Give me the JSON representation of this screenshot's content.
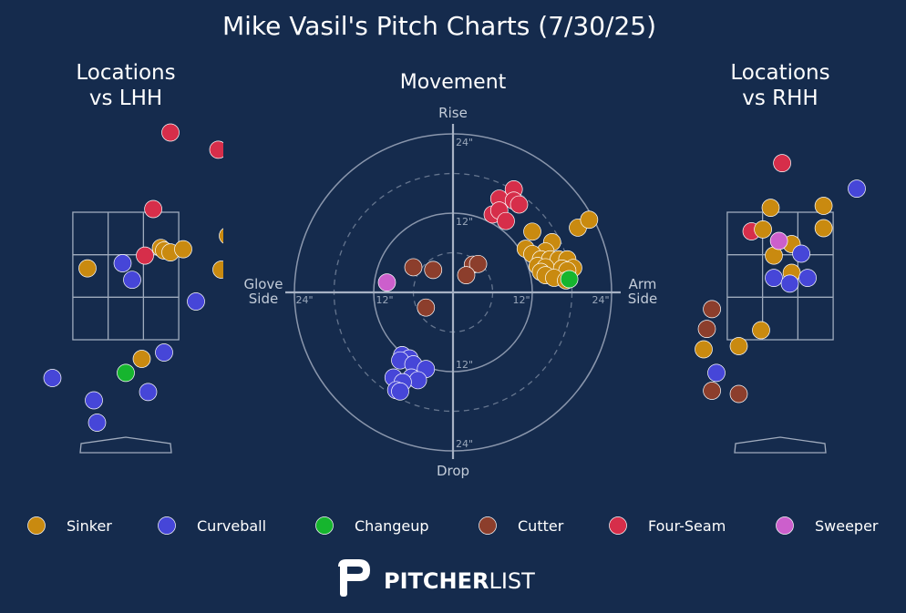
{
  "title": "Mike Vasil's Pitch Charts (7/30/25)",
  "colors": {
    "background": "#152b4d",
    "Sinker": "#c98a10",
    "Curveball": "#4646d8",
    "Changeup": "#16b52e",
    "Cutter": "#8c3e2c",
    "Four-Seam": "#d62e4a",
    "Sweeper": "#cc5fcc"
  },
  "legend": [
    "Sinker",
    "Curveball",
    "Changeup",
    "Cutter",
    "Four-Seam",
    "Sweeper"
  ],
  "logo": {
    "bold": "PITCHER",
    "light": "LIST"
  },
  "chart_data": [
    {
      "type": "scatter",
      "title": "Locations\nvs LHH",
      "units": "ft",
      "strike_zone": {
        "x": [
          -0.83,
          0.83
        ],
        "z": [
          1.5,
          3.5
        ]
      },
      "points": [
        {
          "pitch": "Four-Seam",
          "x": 0.7,
          "z": 4.75
        },
        {
          "pitch": "Four-Seam",
          "x": 1.45,
          "z": 4.48
        },
        {
          "pitch": "Four-Seam",
          "x": 0.43,
          "z": 3.55
        },
        {
          "pitch": "Four-Seam",
          "x": 0.3,
          "z": 2.82
        },
        {
          "pitch": "Sinker",
          "x": 0.55,
          "z": 2.94
        },
        {
          "pitch": "Sinker",
          "x": 0.6,
          "z": 2.9
        },
        {
          "pitch": "Sinker",
          "x": 0.7,
          "z": 2.87
        },
        {
          "pitch": "Sinker",
          "x": 0.9,
          "z": 2.92
        },
        {
          "pitch": "Sinker",
          "x": 1.6,
          "z": 3.13
        },
        {
          "pitch": "Sinker",
          "x": 1.5,
          "z": 2.6
        },
        {
          "pitch": "Sinker",
          "x": -0.6,
          "z": 2.62
        },
        {
          "pitch": "Sinker",
          "x": 0.25,
          "z": 1.2
        },
        {
          "pitch": "Curveball",
          "x": -0.05,
          "z": 2.7
        },
        {
          "pitch": "Curveball",
          "x": 0.1,
          "z": 2.44
        },
        {
          "pitch": "Curveball",
          "x": 1.1,
          "z": 2.1
        },
        {
          "pitch": "Curveball",
          "x": 0.6,
          "z": 1.3
        },
        {
          "pitch": "Curveball",
          "x": -1.15,
          "z": 0.9
        },
        {
          "pitch": "Curveball",
          "x": 0.35,
          "z": 0.68
        },
        {
          "pitch": "Curveball",
          "x": -0.5,
          "z": 0.55
        },
        {
          "pitch": "Curveball",
          "x": -0.45,
          "z": 0.2
        },
        {
          "pitch": "Changeup",
          "x": 0.0,
          "z": 0.98
        }
      ]
    },
    {
      "type": "scatter",
      "title": "Movement",
      "units": "in",
      "axis_labels": {
        "up": "Rise",
        "down": "Drop",
        "left": "Glove\nSide",
        "right": "Arm\nSide"
      },
      "rings": [
        12,
        24
      ],
      "dashed_rings": [
        6,
        18
      ],
      "tick_labels": [
        "24\"",
        "12\"",
        "12\"",
        "24\"",
        "24\"",
        "12\"",
        "12\"",
        "24\""
      ],
      "points": [
        {
          "pitch": "Four-Seam",
          "x": 9.2,
          "z": 15.6
        },
        {
          "pitch": "Four-Seam",
          "x": 7.0,
          "z": 14.2
        },
        {
          "pitch": "Four-Seam",
          "x": 9.2,
          "z": 13.9
        },
        {
          "pitch": "Four-Seam",
          "x": 10.0,
          "z": 13.3
        },
        {
          "pitch": "Four-Seam",
          "x": 6.0,
          "z": 11.8
        },
        {
          "pitch": "Four-Seam",
          "x": 7.0,
          "z": 12.4
        },
        {
          "pitch": "Four-Seam",
          "x": 8.0,
          "z": 10.8
        },
        {
          "pitch": "Sinker",
          "x": 12.0,
          "z": 9.2
        },
        {
          "pitch": "Sinker",
          "x": 15.0,
          "z": 7.6
        },
        {
          "pitch": "Sinker",
          "x": 11.0,
          "z": 6.6
        },
        {
          "pitch": "Sinker",
          "x": 14.0,
          "z": 6.2
        },
        {
          "pitch": "Sinker",
          "x": 12.0,
          "z": 5.8
        },
        {
          "pitch": "Sinker",
          "x": 13.3,
          "z": 5.0
        },
        {
          "pitch": "Sinker",
          "x": 14.7,
          "z": 5.0
        },
        {
          "pitch": "Sinker",
          "x": 16.0,
          "z": 5.0
        },
        {
          "pitch": "Sinker",
          "x": 17.3,
          "z": 5.0
        },
        {
          "pitch": "Sinker",
          "x": 18.9,
          "z": 9.8
        },
        {
          "pitch": "Sinker",
          "x": 20.6,
          "z": 11.0
        },
        {
          "pitch": "Sinker",
          "x": 12.8,
          "z": 4.0
        },
        {
          "pitch": "Sinker",
          "x": 14.0,
          "z": 3.8
        },
        {
          "pitch": "Sinker",
          "x": 16.5,
          "z": 3.6
        },
        {
          "pitch": "Sinker",
          "x": 18.2,
          "z": 3.7
        },
        {
          "pitch": "Sinker",
          "x": 13.3,
          "z": 3.1
        },
        {
          "pitch": "Sinker",
          "x": 17.3,
          "z": 3.3
        },
        {
          "pitch": "Sinker",
          "x": 14.0,
          "z": 2.6
        },
        {
          "pitch": "Sinker",
          "x": 15.3,
          "z": 2.2
        },
        {
          "pitch": "Sinker",
          "x": 17.1,
          "z": 1.8
        },
        {
          "pitch": "Changeup",
          "x": 17.6,
          "z": 2.0
        },
        {
          "pitch": "Cutter",
          "x": -6.0,
          "z": 3.8
        },
        {
          "pitch": "Cutter",
          "x": -3.0,
          "z": 3.4
        },
        {
          "pitch": "Cutter",
          "x": 3.0,
          "z": 4.2
        },
        {
          "pitch": "Cutter",
          "x": 3.8,
          "z": 4.3
        },
        {
          "pitch": "Cutter",
          "x": 2.0,
          "z": 2.6
        },
        {
          "pitch": "Cutter",
          "x": -4.1,
          "z": -2.3
        },
        {
          "pitch": "Sweeper",
          "x": -10.0,
          "z": 1.5
        },
        {
          "pitch": "Curveball",
          "x": -7.7,
          "z": -9.5
        },
        {
          "pitch": "Curveball",
          "x": -6.6,
          "z": -10.0
        },
        {
          "pitch": "Curveball",
          "x": -8.0,
          "z": -10.3
        },
        {
          "pitch": "Curveball",
          "x": -6.0,
          "z": -10.9
        },
        {
          "pitch": "Curveball",
          "x": -4.1,
          "z": -11.6
        },
        {
          "pitch": "Curveball",
          "x": -9.0,
          "z": -12.9
        },
        {
          "pitch": "Curveball",
          "x": -6.3,
          "z": -12.9
        },
        {
          "pitch": "Curveball",
          "x": -5.3,
          "z": -13.3
        },
        {
          "pitch": "Curveball",
          "x": -7.6,
          "z": -13.6
        },
        {
          "pitch": "Curveball",
          "x": -8.6,
          "z": -14.8
        },
        {
          "pitch": "Curveball",
          "x": -8.0,
          "z": -15.0
        }
      ]
    },
    {
      "type": "scatter",
      "title": "Locations\nvs RHH",
      "units": "ft",
      "strike_zone": {
        "x": [
          -0.83,
          0.83
        ],
        "z": [
          1.5,
          3.5
        ]
      },
      "points": [
        {
          "pitch": "Four-Seam",
          "x": 0.03,
          "z": 4.27
        },
        {
          "pitch": "Four-Seam",
          "x": -0.45,
          "z": 3.2
        },
        {
          "pitch": "Curveball",
          "x": 1.2,
          "z": 3.87
        },
        {
          "pitch": "Sinker",
          "x": -0.15,
          "z": 3.57
        },
        {
          "pitch": "Sinker",
          "x": 0.68,
          "z": 3.6
        },
        {
          "pitch": "Sinker",
          "x": -0.27,
          "z": 3.23
        },
        {
          "pitch": "Sinker",
          "x": 0.68,
          "z": 3.25
        },
        {
          "pitch": "Sinker",
          "x": 0.18,
          "z": 3.0
        },
        {
          "pitch": "Sinker",
          "x": -0.1,
          "z": 2.82
        },
        {
          "pitch": "Sinker",
          "x": 0.18,
          "z": 2.55
        },
        {
          "pitch": "Sinker",
          "x": -0.3,
          "z": 1.65
        },
        {
          "pitch": "Sinker",
          "x": -0.65,
          "z": 1.4
        },
        {
          "pitch": "Sinker",
          "x": -1.2,
          "z": 1.35
        },
        {
          "pitch": "Sweeper",
          "x": -0.02,
          "z": 3.05
        },
        {
          "pitch": "Curveball",
          "x": 0.33,
          "z": 2.85
        },
        {
          "pitch": "Curveball",
          "x": -0.1,
          "z": 2.47
        },
        {
          "pitch": "Curveball",
          "x": 0.15,
          "z": 2.38
        },
        {
          "pitch": "Curveball",
          "x": 0.43,
          "z": 2.47
        },
        {
          "pitch": "Curveball",
          "x": -1.0,
          "z": 0.98
        },
        {
          "pitch": "Cutter",
          "x": -1.07,
          "z": 1.98
        },
        {
          "pitch": "Cutter",
          "x": -1.15,
          "z": 1.67
        },
        {
          "pitch": "Cutter",
          "x": -1.07,
          "z": 0.7
        },
        {
          "pitch": "Cutter",
          "x": -0.65,
          "z": 0.65
        },
        {
          "pitch": "Cutter",
          "x": -1.5,
          "z": -0.7
        }
      ]
    }
  ]
}
